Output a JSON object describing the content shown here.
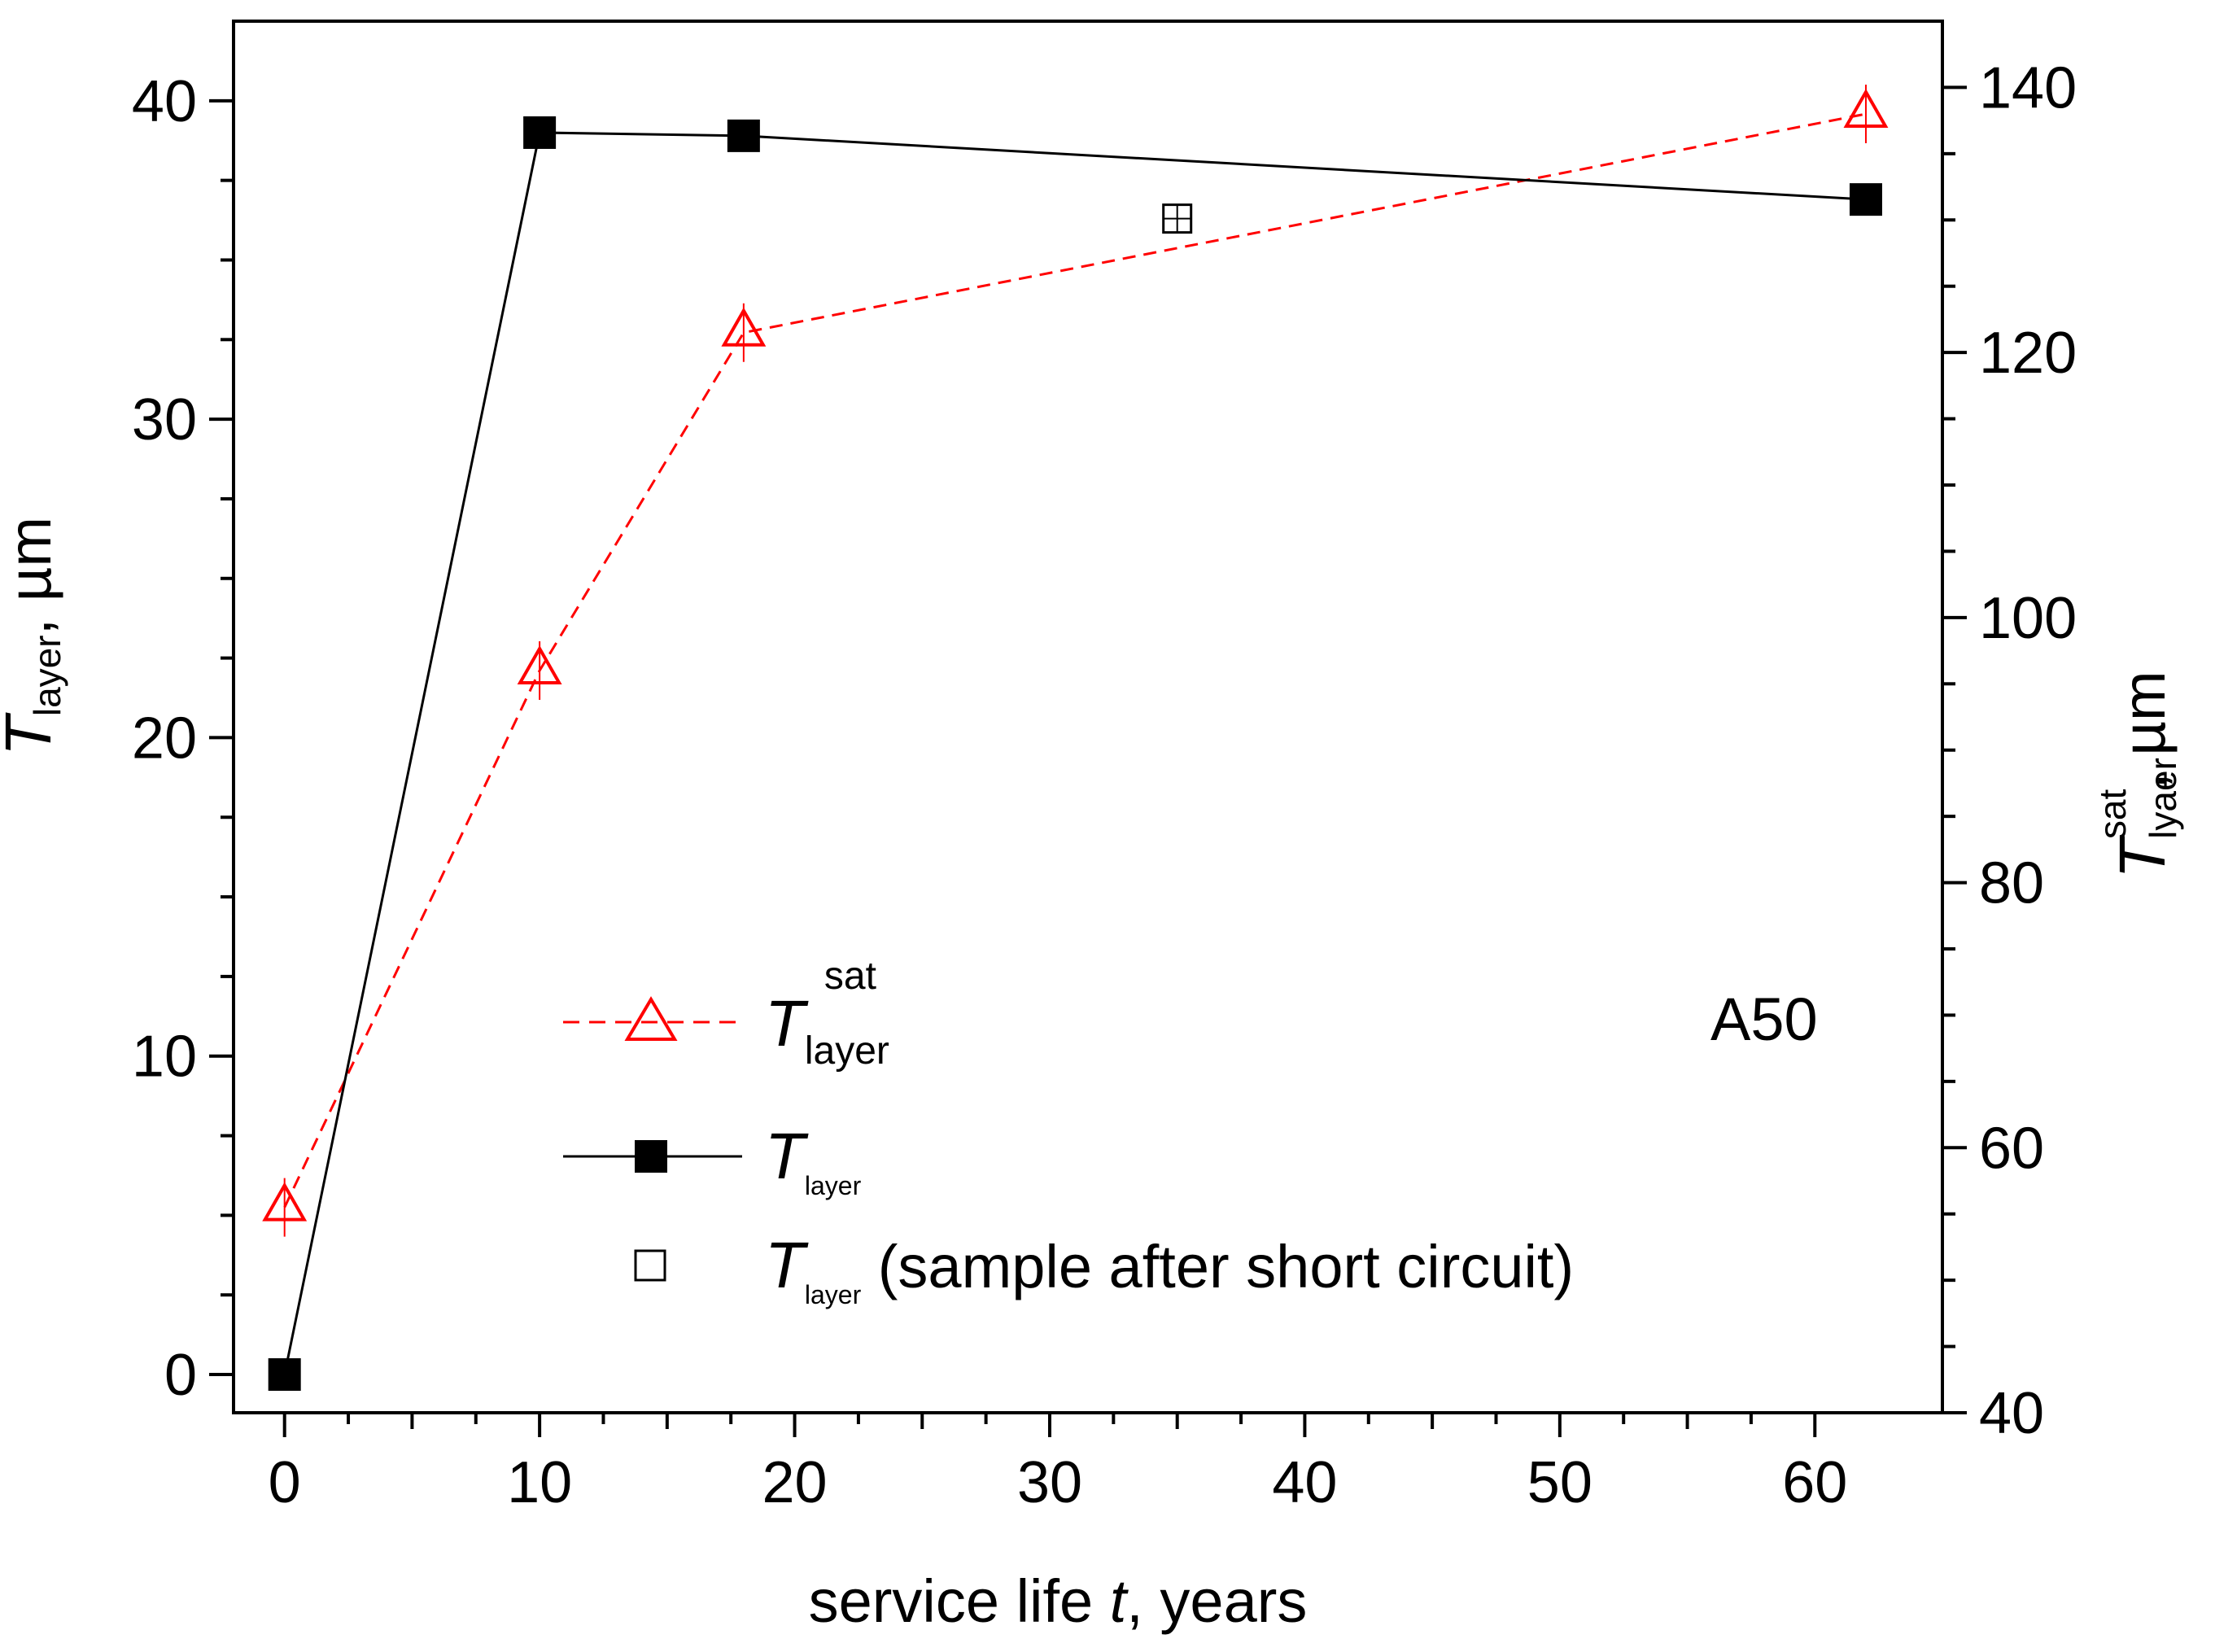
{
  "chart_data": {
    "type": "line",
    "x_axis": {
      "label_prefix": "service life ",
      "label_var": "t",
      "label_suffix": ", years",
      "range": [
        -2,
        65
      ],
      "ticks": [
        0,
        10,
        20,
        30,
        40,
        50,
        60
      ],
      "tick_labels": [
        "0",
        "10",
        "20",
        "30",
        "40",
        "50",
        "60"
      ]
    },
    "y_left": {
      "label_main": "T",
      "label_sub": "layer",
      "label_suffix": ", µm",
      "range": [
        -1.2,
        42.5
      ],
      "ticks": [
        0,
        10,
        20,
        30,
        40
      ],
      "tick_labels": [
        "0",
        "10",
        "20",
        "30",
        "40"
      ]
    },
    "y_right": {
      "label_main": "T",
      "label_sub": "lyaer",
      "label_sup": "sat",
      "label_suffix": ", µm",
      "range": [
        40,
        145
      ],
      "ticks": [
        40,
        60,
        80,
        100,
        120,
        140
      ],
      "tick_labels": [
        "40",
        "60",
        "80",
        "100",
        "120",
        "140"
      ]
    },
    "series": [
      {
        "name": "T_layer_sat",
        "axis": "right",
        "color": "#ff0000",
        "line_style": "dashed",
        "marker": "triangle-open",
        "x": [
          0,
          10,
          18,
          62
        ],
        "y": [
          55.5,
          96.0,
          121.5,
          138.0
        ]
      },
      {
        "name": "T_layer",
        "axis": "left",
        "color": "#000000",
        "line_style": "solid",
        "marker": "square-filled",
        "x": [
          0,
          10,
          18,
          62
        ],
        "y": [
          0,
          39.0,
          38.9,
          36.9
        ]
      },
      {
        "name": "T_layer (sample after short circuit)",
        "axis": "left",
        "color": "#000000",
        "line_style": "none",
        "marker": "square-open",
        "x": [
          35
        ],
        "y": [
          36.3
        ]
      }
    ],
    "legend": [
      {
        "main": "T",
        "sub": "layer",
        "sup": "sat",
        "extra": ""
      },
      {
        "main": "T",
        "sub": "layer",
        "sup": "",
        "extra": ""
      },
      {
        "main": "T",
        "sub": "layer",
        "sup": "",
        "extra": " (sample after short circuit)"
      }
    ],
    "annotation": "A50",
    "legend_position": "lower-middle",
    "grid": false
  }
}
